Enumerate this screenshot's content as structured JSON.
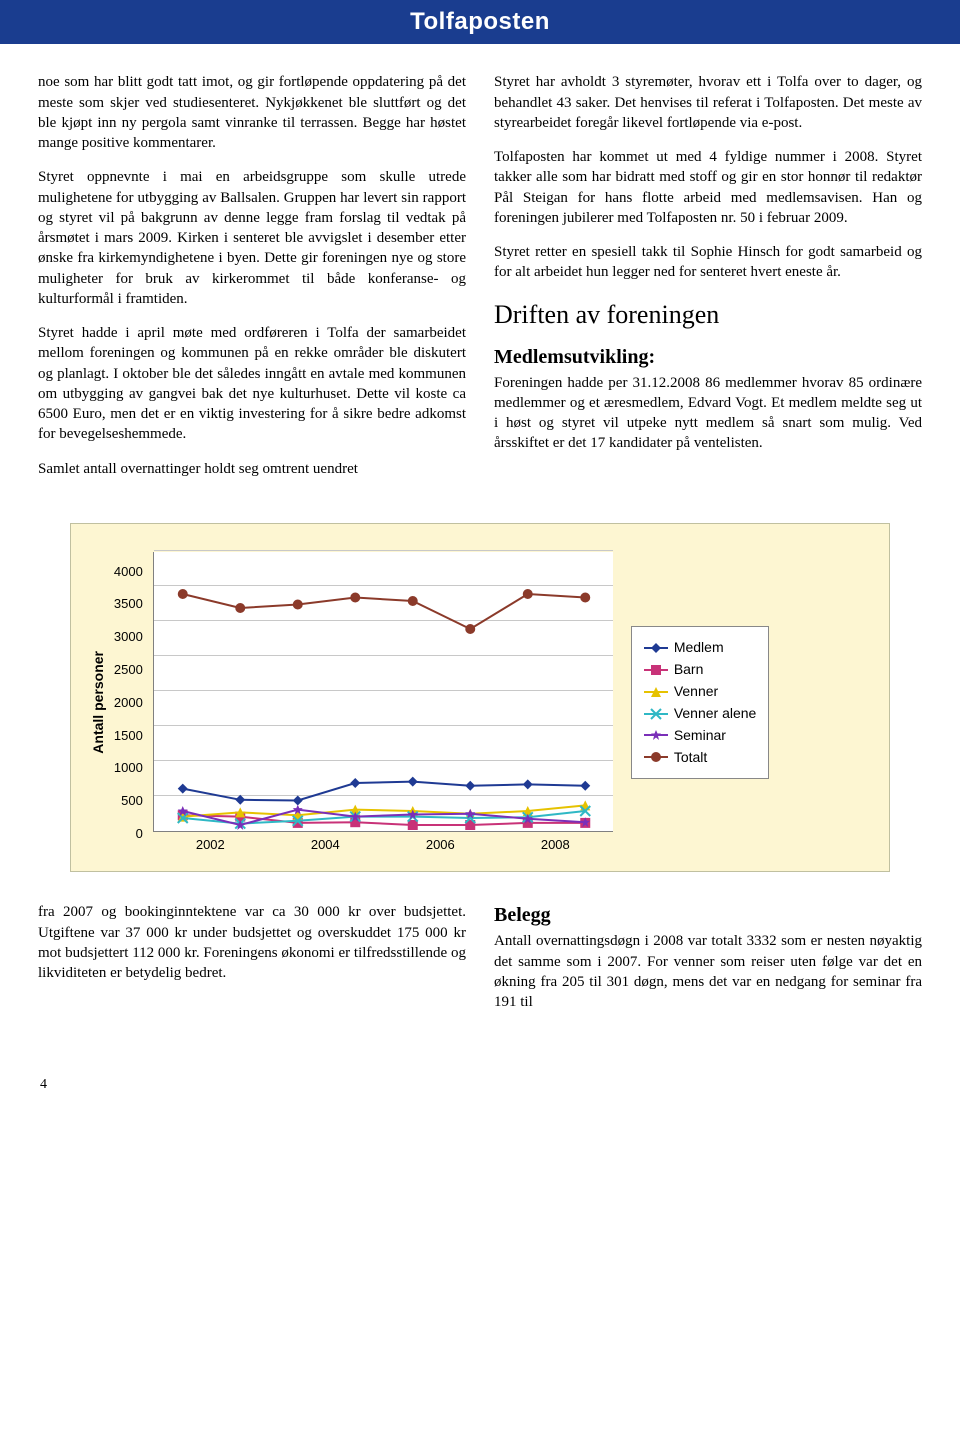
{
  "header": {
    "title": "Tolfaposten"
  },
  "left_col": {
    "p1": "noe som har blitt godt tatt imot, og gir fortløpende oppdatering på det meste som skjer ved studiesenteret. Nykjøkkenet ble sluttført og det ble kjøpt inn ny pergola samt vinranke til terrassen. Begge har høstet mange positive kommentarer.",
    "p2": "Styret oppnevnte i mai en arbeidsgruppe som skulle utrede mulighetene for utbygging av Ballsalen. Gruppen har levert sin rapport og styret vil på bakgrunn av denne legge fram forslag til vedtak på årsmøtet i mars 2009. Kirken i senteret ble avvigslet i desember etter ønske fra kirkemyndighetene i byen. Dette gir foreningen nye og store muligheter for bruk av kirkerommet til både konferanse- og kulturformål i framtiden.",
    "p3": " Styret hadde i april møte med ordføreren i Tolfa der samarbeidet mellom foreningen og kommunen på en rekke områder ble diskutert og planlagt. I oktober ble det således inngått en avtale med kommunen om utbygging av gangvei bak det nye kulturhuset. Dette vil koste ca 6500 Euro, men det er en viktig investering for å sikre bedre adkomst for bevegelseshemmede.",
    "p4": "Samlet antall overnattinger holdt seg omtrent uendret"
  },
  "right_col": {
    "p1": "Styret har avholdt 3 styremøter, hvorav ett i Tolfa over to dager, og behandlet 43 saker. Det henvises til referat i Tolfaposten. Det meste av styrearbeidet foregår likevel fortløpende via e-post.",
    "p2": "Tolfaposten har kommet ut med 4 fyldige nummer i 2008. Styret takker alle som har bidratt med stoff og gir en stor honnør til redaktør Pål Steigan for hans flotte arbeid med medlemsavisen. Han og foreningen jubilerer med Tolfaposten nr. 50 i februar 2009.",
    "p3": "Styret retter en spesiell takk til Sophie Hinsch for godt samarbeid og for alt arbeidet hun legger ned for senteret hvert eneste år.",
    "h2": "Driften av foreningen",
    "h3": "Medlemsutvikling:",
    "p4": "Foreningen hadde per 31.12.2008 86 medlemmer hvorav 85 ordinære medlemmer og et æresmedlem, Edvard Vogt. Et medlem meldte seg ut i høst og styret vil utpeke nytt medlem så snart som mulig. Ved årsskiftet er det 17 kandidater på ventelisten."
  },
  "chart": {
    "type": "line",
    "ylabel": "Antall personer",
    "ylim": [
      0,
      4000
    ],
    "ytick_step": 500,
    "yticks": [
      "4000",
      "3500",
      "3000",
      "2500",
      "2000",
      "1500",
      "1000",
      "500",
      "0"
    ],
    "xlabels": [
      "2002",
      "2004",
      "2006",
      "2008"
    ],
    "xtick_count": 8,
    "background_color": "#fdf6d2",
    "plot_bg": "#ffffff",
    "grid_color": "#c8c8c8",
    "series": [
      {
        "name": "Medlem",
        "color": "#1f3a93",
        "marker": "diamond",
        "values": [
          620,
          460,
          450,
          700,
          720,
          660,
          680,
          660
        ]
      },
      {
        "name": "Barn",
        "color": "#c83278",
        "marker": "square",
        "values": [
          240,
          220,
          130,
          140,
          100,
          100,
          130,
          130
        ]
      },
      {
        "name": "Venner",
        "color": "#e6c200",
        "marker": "triangle",
        "values": [
          220,
          280,
          240,
          320,
          300,
          260,
          300,
          380
        ]
      },
      {
        "name": "Venner alene",
        "color": "#2fb8c5",
        "marker": "x",
        "values": [
          200,
          120,
          160,
          220,
          220,
          200,
          210,
          300
        ]
      },
      {
        "name": "Seminar",
        "color": "#7a2fb8",
        "marker": "star",
        "values": [
          300,
          100,
          320,
          220,
          250,
          260,
          190,
          140
        ]
      },
      {
        "name": "Totalt",
        "color": "#8b3a2a",
        "marker": "circle",
        "values": [
          3400,
          3200,
          3250,
          3350,
          3300,
          2900,
          3400,
          3350
        ]
      }
    ],
    "legend_labels": [
      "Medlem",
      "Barn",
      "Venner",
      "Venner alene",
      "Seminar",
      "Totalt"
    ]
  },
  "bottom_left": {
    "p1": "fra 2007 og bookinginntektene var ca 30 000 kr over budsjettet. Utgiftene var 37 000 kr under budsjettet og overskuddet 175 000 kr mot budsjettert 112 000 kr. Foreningens økonomi er tilfredsstillende og likviditeten er betydelig bedret."
  },
  "bottom_right": {
    "h3": "Belegg",
    "p1": "Antall overnattingsdøgn i 2008 var totalt 3332 som er nesten nøyaktig det samme som i 2007. For venner som reiser uten følge var det en økning fra 205 til 301 døgn, mens det var en nedgang for seminar fra 191 til"
  },
  "page_number": "4"
}
